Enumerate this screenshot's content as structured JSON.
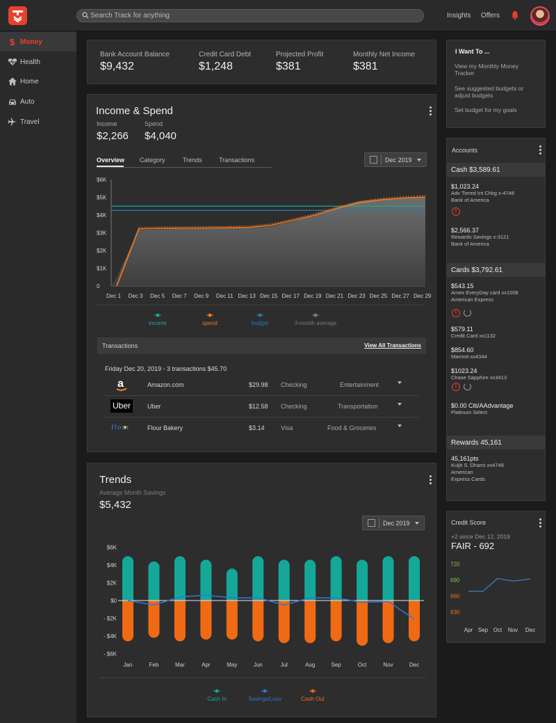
{
  "search": {
    "placeholder": "Search Track for anything"
  },
  "topnav": {
    "insights": "Insights",
    "offers": "Offers"
  },
  "sidebar": {
    "items": [
      {
        "label": "Money",
        "icon": "dollar-icon"
      },
      {
        "label": "Health",
        "icon": "heart-pulse-icon"
      },
      {
        "label": "Home",
        "icon": "home-icon"
      },
      {
        "label": "Auto",
        "icon": "car-icon"
      },
      {
        "label": "Travel",
        "icon": "airplane-icon"
      }
    ]
  },
  "kpis": [
    {
      "label": "Bank Account Balance",
      "value": "$9,432"
    },
    {
      "label": "Credit Card Debt",
      "value": "$1,248"
    },
    {
      "label": "Projected Profit",
      "value": "$381"
    },
    {
      "label": "Monthly Net Income",
      "value": "$381"
    }
  ],
  "income_spend": {
    "title": "Income & Spend",
    "income_label": "Income",
    "income_value": "$2,266",
    "spend_label": "Spend",
    "spend_value": "$4,040",
    "tabs": [
      "Overview",
      "Category",
      "Trends",
      "Transactions"
    ],
    "date": "Dec 2019",
    "legend": [
      "income",
      "spend",
      "budget",
      "3-month average"
    ]
  },
  "transactions": {
    "header": "Transactions",
    "view_all": "View All Transactions",
    "day": "Friday Dec 20, 2019 - 3 transactions $45.70",
    "rows": [
      {
        "logo": "a",
        "merchant": "Amazon.com",
        "amount": "$29.98",
        "account": "Checking",
        "category": "Entertainment"
      },
      {
        "logo": "Uber",
        "merchant": "Uber",
        "amount": "$12.58",
        "account": "Checking",
        "category": "Transportation"
      },
      {
        "logo": "flour",
        "merchant": "Flour Bakery",
        "amount": "$3.14",
        "account": "Visa",
        "category": "Food & Groceries"
      }
    ]
  },
  "trends": {
    "title": "Trends",
    "subtitle": "Average Month Savings",
    "value": "$5,432",
    "date": "Dec 2019",
    "legend": [
      "Cash In",
      "Savings/Loss",
      "Cash Out"
    ]
  },
  "iwant": {
    "title": "I Want To ...",
    "links": [
      "View my Monthly Money Tracker",
      "See suggested budgets or adjust budgets",
      "Set budget for my goals"
    ]
  },
  "accounts": {
    "title": "Accounts",
    "cash_header": "Cash $3,589.61",
    "cash": [
      {
        "amount": "$1,023.24",
        "line1": "Adv Tiered Int Chkg x-4748",
        "line2": "Bank of America"
      },
      {
        "amount": "$2,566.37",
        "line1": "Rewards Savings x-3121",
        "line2": "Bank of America"
      }
    ],
    "alert_glyph": "!",
    "cards_header": "Cards $3,792.61",
    "cards": [
      {
        "amount": "$543.15",
        "line1": "Amex EveryDay card xx1008",
        "line2": "American Express"
      },
      {
        "amount": "$579.11",
        "line1": "Credit Card xx1132",
        "line2": ""
      },
      {
        "amount": "$854.60",
        "line1": "Marriott xx4344",
        "line2": ""
      },
      {
        "amount": "$1023.24",
        "line1": "Chase Sapphire xx3413",
        "line2": ""
      },
      {
        "amount": "$0.00 Citi/AAdvantage",
        "line1": "Platinum Select",
        "line2": ""
      }
    ],
    "rewards_header": "Rewards 45,161",
    "rewards": {
      "amount": "45,161pts",
      "line1": "Kuljit S. Dharni xx4748",
      "line2": "American",
      "line3": "Express Cards"
    }
  },
  "credit_score": {
    "title": "Credit Score",
    "change": "+2 since Dec 12, 2019",
    "status": "FAIR - 692"
  },
  "chart_data": [
    {
      "type": "area",
      "title": "",
      "x": [
        "Dec 1",
        "Dec 3",
        "Dec 5",
        "Dec 7",
        "Dec 9",
        "Dec 11",
        "Dec 13",
        "Dec 15",
        "Dec 17",
        "Dec 19",
        "Dec 21",
        "Dec 23",
        "Dec 25",
        "Dec 27",
        "Dec 29"
      ],
      "y_ticks": [
        "0",
        "$1K",
        "$2K",
        "$3K",
        "$4K",
        "$5K",
        "$6K"
      ],
      "ylim": [
        0,
        6000
      ],
      "series": [
        {
          "name": "income",
          "values": [
            null,
            null,
            null,
            null,
            null,
            null,
            null,
            null,
            null,
            null,
            null,
            null,
            null,
            null,
            null
          ],
          "constant": 4500,
          "color": "#1aa89a"
        },
        {
          "name": "spend",
          "values": [
            0,
            3220,
            3250,
            3260,
            3270,
            3280,
            3300,
            3420,
            3700,
            4000,
            4380,
            4680,
            4860,
            4960,
            5020
          ],
          "color": "#f07820"
        },
        {
          "name": "budget",
          "constant": 4260,
          "color": "#1e7eb8"
        },
        {
          "name": "3-month average",
          "values": [
            500,
            3150,
            3200,
            3220,
            3240,
            3260,
            3260,
            3360,
            3640,
            4000,
            4420,
            4780,
            4900,
            4980,
            5000
          ],
          "color": "#8a8a8a"
        }
      ]
    },
    {
      "type": "bar",
      "categories": [
        "Jan",
        "Feb",
        "Mar",
        "Apr",
        "May",
        "Jun",
        "Jul",
        "Aug",
        "Sep",
        "Oct",
        "Nov",
        "Dec"
      ],
      "y_ticks": [
        "- $6K",
        "- $4K",
        "- $2K",
        "$0",
        "$2K",
        "$4K",
        "$6K"
      ],
      "ylim": [
        -6000,
        6000
      ],
      "series": [
        {
          "name": "Cash In",
          "values": [
            5000,
            4400,
            5000,
            4600,
            3600,
            5000,
            4600,
            4600,
            5000,
            4600,
            5000,
            5000
          ],
          "color": "#15a898"
        },
        {
          "name": "Cash Out",
          "values": [
            -4600,
            -4200,
            -4600,
            -4400,
            -4400,
            -4600,
            -4800,
            -4800,
            -4600,
            -5100,
            -4800,
            -4600
          ],
          "color": "#f06a14"
        },
        {
          "name": "Savings/Loss",
          "values": [
            0,
            -500,
            400,
            600,
            300,
            300,
            -500,
            300,
            300,
            -200,
            -100,
            -2100
          ],
          "color": "#2f76d6"
        }
      ]
    },
    {
      "type": "line",
      "title": "",
      "categories": [
        "Apr",
        "Sep",
        "Oct",
        "Nov",
        "Dec"
      ],
      "y_ticks": [
        "630",
        "660",
        "690",
        "720"
      ],
      "tick_colors": [
        "#f07820",
        "#f07820",
        "#8bc34a",
        "#8bc34a"
      ],
      "ylim": [
        620,
        730
      ],
      "series": [
        {
          "name": "",
          "values": [
            669,
            669,
            693,
            688,
            692
          ],
          "color": "#3a86cf"
        }
      ]
    }
  ]
}
